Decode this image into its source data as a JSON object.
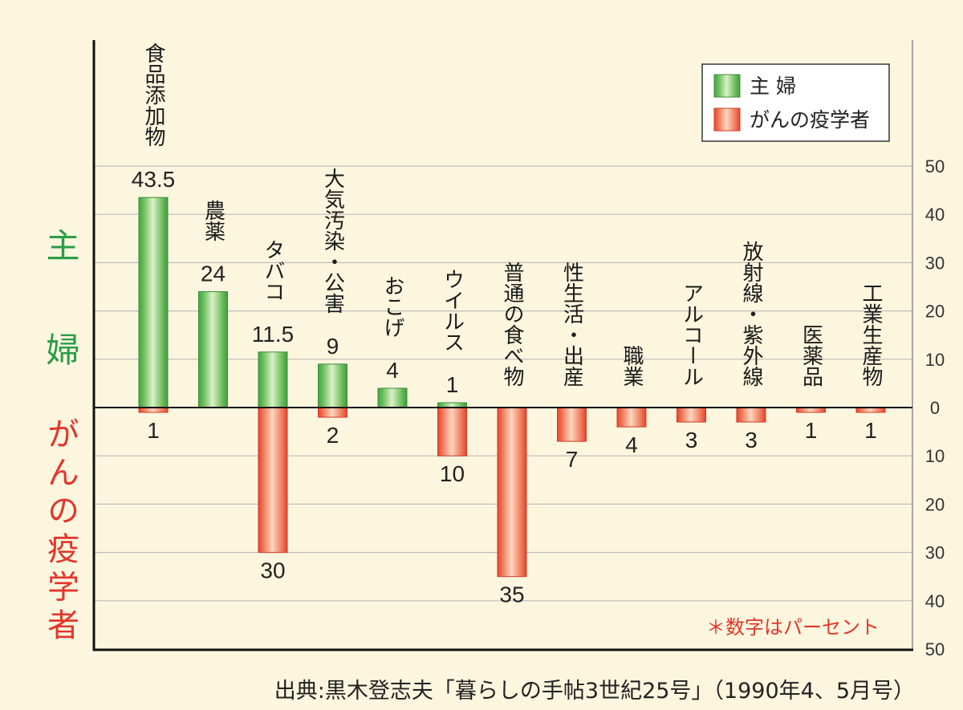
{
  "colors": {
    "background": "#fcf6df",
    "note": "#e2362a"
  },
  "chart_data": {
    "type": "bar",
    "layout": "diverging",
    "categories": [
      "食品添加物",
      "農薬",
      "タバコ",
      "大気汚染・公害",
      "おこげ",
      "ウイルス",
      "普通の食べ物",
      "性生活・出産",
      "職業",
      "アルコール",
      "放射線・紫外線",
      "医薬品",
      "工業生産物"
    ],
    "series": [
      {
        "name": "主 婦",
        "direction": "up",
        "color": "#2a9d46",
        "values": [
          43.5,
          24,
          11.5,
          9,
          4,
          1,
          null,
          null,
          null,
          null,
          null,
          null,
          null
        ]
      },
      {
        "name": "がんの疫学者",
        "direction": "down",
        "color": "#e2362a",
        "values": [
          1,
          null,
          30,
          2,
          null,
          10,
          35,
          7,
          4,
          3,
          3,
          1,
          1
        ]
      }
    ],
    "ylabel_top": "主婦",
    "ylabel_bottom": "がんの疫学者",
    "ylim_up": [
      0,
      50
    ],
    "ylim_down": [
      0,
      50
    ],
    "yticks_up": [
      0,
      10,
      20,
      30,
      40,
      50
    ],
    "yticks_down": [
      10,
      20,
      30,
      40,
      50
    ],
    "grid": true,
    "legend": {
      "position": "top-right"
    },
    "note": "＊数字はパーセント",
    "source": "出典:黒木登志夫「暮らしの手帖3世紀25号」（1990年4、5月号）"
  }
}
